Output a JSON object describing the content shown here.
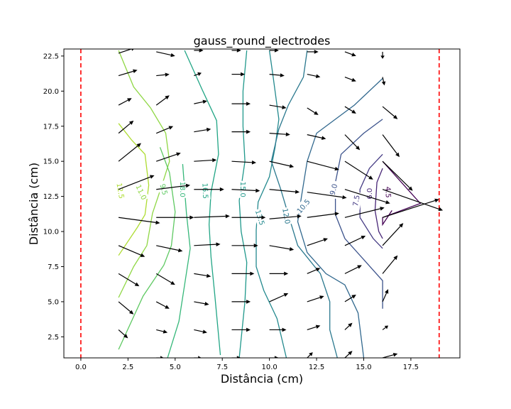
{
  "chart_data": {
    "type": "contour-quiver",
    "title": "gauss_round_electrodes",
    "xlabel": "Distância (cm)",
    "ylabel": "Distância (cm)",
    "xlim": [
      -0.9,
      20.1
    ],
    "ylim": [
      1.0,
      23.0
    ],
    "xticks": [
      0.0,
      2.5,
      5.0,
      7.5,
      10.0,
      12.5,
      15.0,
      17.5
    ],
    "xtick_labels": [
      "0.0",
      "2.5",
      "5.0",
      "7.5",
      "10.0",
      "12.5",
      "15.0",
      "17.5"
    ],
    "yticks": [
      2.5,
      5.0,
      7.5,
      10.0,
      12.5,
      15.0,
      17.5,
      20.0,
      22.5
    ],
    "ytick_labels": [
      "2.5",
      "5.0",
      "7.5",
      "10.0",
      "12.5",
      "15.0",
      "17.5",
      "20.0",
      "22.5"
    ],
    "electrodes": {
      "x": [
        0.0,
        19.0
      ],
      "color": "#ff0000",
      "style": "dashed"
    },
    "contours": [
      {
        "level": "12.5",
        "color": "#addc30",
        "points": [
          [
            2.0,
            17.7
          ],
          [
            2.7,
            16.5
          ],
          [
            3.4,
            15.5
          ],
          [
            3.6,
            13.3
          ],
          [
            3.4,
            11.2
          ],
          [
            3.0,
            10.3
          ],
          [
            2.0,
            8.3
          ]
        ],
        "label_at": [
          2.1,
          12.9
        ],
        "label_angle": 80
      },
      {
        "level": "11.0",
        "color": "#8fd744",
        "points": [
          [
            2.0,
            22.9
          ],
          [
            2.8,
            20.3
          ],
          [
            3.7,
            18.8
          ],
          [
            4.5,
            17.0
          ],
          [
            4.7,
            15.0
          ],
          [
            4.3,
            13.3
          ],
          [
            3.8,
            11.3
          ],
          [
            3.5,
            9.0
          ],
          [
            2.8,
            7.5
          ],
          [
            2.0,
            5.3
          ]
        ],
        "label_at": [
          3.2,
          12.8
        ],
        "label_angle": 65
      },
      {
        "level": "9.5",
        "color": "#5ec962",
        "points": [
          [
            4.2,
            16.0
          ],
          [
            4.7,
            14.2
          ],
          [
            5.0,
            11.4
          ],
          [
            4.8,
            9.0
          ],
          [
            4.4,
            7.6
          ],
          [
            3.3,
            5.4
          ],
          [
            2.0,
            1.6
          ]
        ],
        "label_at": [
          4.4,
          13.0
        ],
        "label_angle": 75
      },
      {
        "level": "18.0",
        "color": "#35b779",
        "points": [
          [
            5.4,
            14.8
          ],
          [
            5.6,
            11.3
          ],
          [
            5.8,
            8.8
          ],
          [
            5.5,
            6.2
          ],
          [
            5.2,
            3.6
          ],
          [
            4.6,
            1.0
          ]
        ],
        "label_at": [
          5.4,
          13.0
        ],
        "label_angle": 90
      },
      {
        "level": "16.5",
        "color": "#21a585",
        "points": [
          [
            5.5,
            22.9
          ],
          [
            6.4,
            20.2
          ],
          [
            7.2,
            17.9
          ],
          [
            7.3,
            15.5
          ],
          [
            6.9,
            12.8
          ],
          [
            6.8,
            10.5
          ],
          [
            6.9,
            8.2
          ],
          [
            7.1,
            5.5
          ],
          [
            7.4,
            1.2
          ]
        ],
        "label_at": [
          6.6,
          12.9
        ],
        "label_angle": 88
      },
      {
        "level": "15.0",
        "color": "#1f988b",
        "points": [
          [
            8.8,
            22.9
          ],
          [
            8.6,
            20.0
          ],
          [
            8.6,
            17.5
          ],
          [
            8.7,
            15.0
          ],
          [
            8.4,
            12.2
          ],
          [
            8.5,
            10.0
          ],
          [
            8.8,
            7.8
          ],
          [
            8.7,
            5.0
          ],
          [
            8.4,
            1.0
          ]
        ],
        "label_at": [
          8.6,
          13.0
        ],
        "label_angle": 90
      },
      {
        "level": "13.5",
        "color": "#23898e",
        "points": [
          [
            10.0,
            22.9
          ],
          [
            10.2,
            21.0
          ],
          [
            10.5,
            18.0
          ],
          [
            10.3,
            16.0
          ],
          [
            10.0,
            13.9
          ],
          [
            9.4,
            12.1
          ],
          [
            9.3,
            10.1
          ],
          [
            9.3,
            7.5
          ],
          [
            9.7,
            5.8
          ],
          [
            10.4,
            3.8
          ],
          [
            10.9,
            1.0
          ]
        ],
        "label_at": [
          9.5,
          11.0
        ],
        "label_angle": 72
      },
      {
        "level": "12.0",
        "color": "#2a788e",
        "points": [
          [
            12.0,
            22.9
          ],
          [
            11.8,
            21.0
          ],
          [
            11.0,
            19.0
          ],
          [
            10.5,
            17.3
          ],
          [
            10.1,
            15.0
          ],
          [
            10.6,
            13.0
          ],
          [
            11.0,
            11.2
          ],
          [
            11.5,
            9.0
          ],
          [
            12.7,
            7.0
          ],
          [
            13.2,
            5.0
          ],
          [
            13.2,
            3.0
          ],
          [
            13.6,
            1.0
          ]
        ],
        "label_at": [
          10.9,
          11.1
        ],
        "label_angle": 80
      },
      {
        "level": "10.5",
        "color": "#31688e",
        "points": [
          [
            16.0,
            20.9
          ],
          [
            14.5,
            19.0
          ],
          [
            13.5,
            18.0
          ],
          [
            12.5,
            17.0
          ],
          [
            12.0,
            15.0
          ],
          [
            11.7,
            12.5
          ],
          [
            11.5,
            10.7
          ],
          [
            12.0,
            8.5
          ],
          [
            13.0,
            7.0
          ],
          [
            14.0,
            6.2
          ],
          [
            14.7,
            4.2
          ],
          [
            15.0,
            1.0
          ]
        ],
        "label_at": [
          11.8,
          11.8
        ],
        "label_angle": -50
      },
      {
        "level": "9.0",
        "color": "#3b528b",
        "points": [
          [
            16.0,
            18.0
          ],
          [
            15.0,
            17.0
          ],
          [
            13.8,
            15.5
          ],
          [
            13.5,
            13.5
          ],
          [
            13.5,
            11.2
          ],
          [
            14.0,
            9.5
          ],
          [
            15.0,
            8.0
          ],
          [
            16.0,
            6.5
          ],
          [
            16.0,
            4.5
          ]
        ],
        "label_at": [
          13.4,
          13.0
        ],
        "label_angle": -75
      },
      {
        "level": "7.5",
        "color": "#443a83",
        "points": [
          [
            16.0,
            15.5
          ],
          [
            15.3,
            14.5
          ],
          [
            14.8,
            13.0
          ],
          [
            14.8,
            11.0
          ],
          [
            15.5,
            9.5
          ],
          [
            16.0,
            8.8
          ]
        ],
        "label_at": [
          14.6,
          12.2
        ],
        "label_angle": -80
      },
      {
        "level": "6.0",
        "color": "#482677",
        "points": [
          [
            16.0,
            14.5
          ],
          [
            15.7,
            13.5
          ],
          [
            15.6,
            11.5
          ],
          [
            15.8,
            10.0
          ],
          [
            16.0,
            9.5
          ]
        ],
        "label_at": [
          15.3,
          12.7
        ],
        "label_angle": -90
      },
      {
        "level": "4.5",
        "color": "#440154",
        "points": [
          [
            16.0,
            15.0
          ],
          [
            18.0,
            12.0
          ],
          [
            16.0,
            11.0
          ],
          [
            16.0,
            10.5
          ],
          [
            16.5,
            11.5
          ]
        ],
        "label_at": [
          16.3,
          12.8
        ],
        "label_angle": 88
      }
    ],
    "vectors": {
      "scale": 1.0,
      "color": "#000000",
      "arrows": [
        [
          2.0,
          22.7,
          0.9,
          0.4
        ],
        [
          4.0,
          22.8,
          1.0,
          -0.3
        ],
        [
          6.0,
          22.9,
          0.5,
          0
        ],
        [
          8.0,
          22.9,
          0.5,
          0
        ],
        [
          10.0,
          22.9,
          0.5,
          0
        ],
        [
          12.0,
          22.8,
          0.6,
          0
        ],
        [
          14.0,
          22.8,
          0.6,
          -0.3
        ],
        [
          16.0,
          22.8,
          0.0,
          -0.5
        ],
        [
          2.0,
          21.1,
          1.0,
          0.4
        ],
        [
          4.0,
          21.1,
          0.7,
          0.1
        ],
        [
          6.0,
          21.1,
          0.4,
          0.2
        ],
        [
          8.0,
          21.2,
          0.7,
          0.0
        ],
        [
          10.0,
          21.2,
          0.8,
          -0.1
        ],
        [
          12.0,
          21.2,
          0.7,
          -0.2
        ],
        [
          14.0,
          21.0,
          0.6,
          -0.3
        ],
        [
          16.0,
          21.0,
          0.1,
          -0.6
        ],
        [
          2.0,
          19.0,
          0.7,
          0.5
        ],
        [
          4.0,
          19.0,
          0.7,
          0.7
        ],
        [
          6.0,
          19.1,
          0.7,
          0.2
        ],
        [
          8.0,
          19.1,
          1.0,
          0.0
        ],
        [
          10.0,
          19.0,
          0.9,
          -0.2
        ],
        [
          12.0,
          18.8,
          0.6,
          -0.5
        ],
        [
          14.0,
          18.9,
          0.6,
          -0.5
        ],
        [
          16.0,
          18.9,
          0.8,
          -0.9
        ],
        [
          2.0,
          17.0,
          0.8,
          0.9
        ],
        [
          4.0,
          17.0,
          0.9,
          0.5
        ],
        [
          6.0,
          17.1,
          0.9,
          0.2
        ],
        [
          8.0,
          17.1,
          1.0,
          0.0
        ],
        [
          10.0,
          17.0,
          1.1,
          -0.1
        ],
        [
          12.0,
          16.9,
          1.0,
          -0.3
        ],
        [
          14.0,
          16.9,
          0.8,
          -1.1
        ],
        [
          16.0,
          16.9,
          0.9,
          -1.6
        ],
        [
          2.0,
          15.0,
          1.2,
          1.3
        ],
        [
          4.0,
          15.0,
          1.3,
          0.6
        ],
        [
          6.0,
          15.0,
          1.2,
          0.1
        ],
        [
          8.0,
          15.0,
          1.3,
          -0.1
        ],
        [
          10.0,
          15.0,
          1.3,
          -0.4
        ],
        [
          12.0,
          15.0,
          1.7,
          -0.6
        ],
        [
          14.0,
          15.0,
          1.5,
          -1.3
        ],
        [
          16.0,
          15.0,
          1.6,
          -2.1
        ],
        [
          2.0,
          13.0,
          1.9,
          1.0
        ],
        [
          4.0,
          13.0,
          1.8,
          0.3
        ],
        [
          6.0,
          13.0,
          1.6,
          0.0
        ],
        [
          8.0,
          13.0,
          1.5,
          -0.1
        ],
        [
          10.0,
          13.0,
          1.6,
          -0.2
        ],
        [
          12.0,
          12.8,
          2.1,
          -0.4
        ],
        [
          14.0,
          13.0,
          2.4,
          -1.0
        ],
        [
          16.0,
          13.0,
          3.2,
          -1.5
        ],
        [
          2.0,
          11.0,
          2.2,
          -0.4
        ],
        [
          4.0,
          11.0,
          2.0,
          0.0
        ],
        [
          6.0,
          11.0,
          1.9,
          0.1
        ],
        [
          8.0,
          11.0,
          1.8,
          0.0
        ],
        [
          10.0,
          10.9,
          1.7,
          0.2
        ],
        [
          12.0,
          11.0,
          1.7,
          0.3
        ],
        [
          14.0,
          11.0,
          2.1,
          0.7
        ],
        [
          16.0,
          11.0,
          3.0,
          1.3
        ],
        [
          2.0,
          9.0,
          1.4,
          -0.8
        ],
        [
          4.0,
          9.0,
          1.4,
          -0.4
        ],
        [
          6.0,
          9.0,
          1.4,
          0.1
        ],
        [
          8.0,
          9.0,
          1.4,
          0.0
        ],
        [
          10.0,
          9.0,
          1.3,
          -0.3
        ],
        [
          12.0,
          9.0,
          1.1,
          0.5
        ],
        [
          14.0,
          9.0,
          1.1,
          0.7
        ],
        [
          16.0,
          9.0,
          1.1,
          1.6
        ],
        [
          2.0,
          7.0,
          1.1,
          -0.9
        ],
        [
          4.0,
          7.0,
          1.0,
          -0.8
        ],
        [
          6.0,
          7.0,
          0.9,
          -0.2
        ],
        [
          8.0,
          7.0,
          1.2,
          0.0
        ],
        [
          10.0,
          7.0,
          1.0,
          0.0
        ],
        [
          12.0,
          7.0,
          0.7,
          0.4
        ],
        [
          14.0,
          7.0,
          0.9,
          0.6
        ],
        [
          16.0,
          7.0,
          0.8,
          1.3
        ],
        [
          2.0,
          5.0,
          0.8,
          -0.9
        ],
        [
          4.0,
          5.0,
          0.7,
          -0.5
        ],
        [
          6.0,
          5.0,
          0.8,
          -0.2
        ],
        [
          8.0,
          5.0,
          1.0,
          0.0
        ],
        [
          10.0,
          5.0,
          1.0,
          0.6
        ],
        [
          12.0,
          5.0,
          0.9,
          0.4
        ],
        [
          14.0,
          5.0,
          0.6,
          0.5
        ],
        [
          16.0,
          5.0,
          0.3,
          0.9
        ],
        [
          2.0,
          3.0,
          0.5,
          -0.6
        ],
        [
          4.0,
          3.0,
          0.6,
          -0.2
        ],
        [
          6.0,
          3.0,
          0.7,
          -0.2
        ],
        [
          8.0,
          3.0,
          1.0,
          0.0
        ],
        [
          10.0,
          3.0,
          0.9,
          0.0
        ],
        [
          12.0,
          3.0,
          0.7,
          0.3
        ],
        [
          14.0,
          3.0,
          0.4,
          0.5
        ],
        [
          16.0,
          3.0,
          0.3,
          0.3
        ],
        [
          2.0,
          1.0,
          0.3,
          -0.3
        ],
        [
          4.0,
          1.0,
          0.4,
          0
        ],
        [
          6.0,
          1.0,
          0.4,
          0
        ],
        [
          8.0,
          1.0,
          0.5,
          0
        ],
        [
          10.0,
          1.0,
          0.5,
          0
        ],
        [
          12.0,
          1.0,
          0.3,
          0.4
        ],
        [
          14.0,
          1.0,
          0.4,
          0.5
        ],
        [
          16.0,
          1.0,
          0.8,
          0.3
        ]
      ]
    }
  }
}
